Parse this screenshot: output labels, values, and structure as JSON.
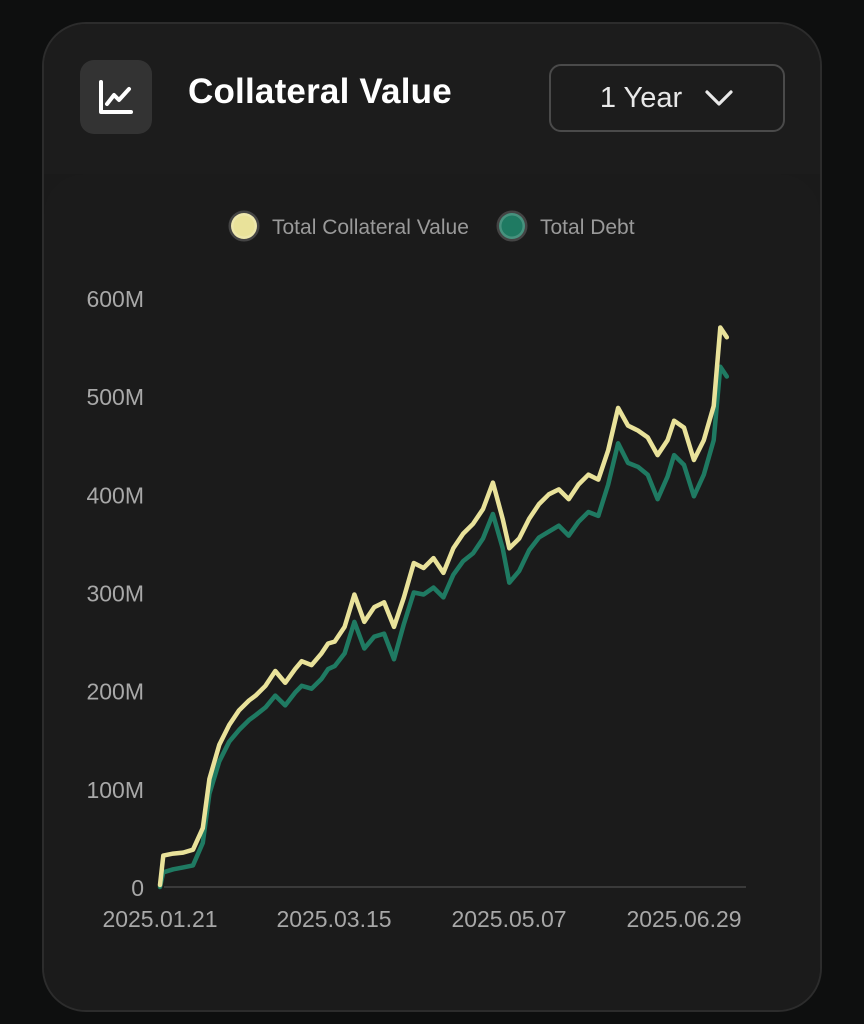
{
  "header": {
    "title": "Collateral Value",
    "icon": "line-chart-icon",
    "range_label": "1 Year"
  },
  "colors": {
    "collateral": "#e9e29a",
    "debt": "#1f7a62",
    "background": "#1b1b1b"
  },
  "chart_data": {
    "type": "line",
    "title": "",
    "xlabel": "",
    "ylabel": "",
    "ylim": [
      0,
      600000000
    ],
    "yticks": [
      {
        "value": 0,
        "label": "0"
      },
      {
        "value": 100000000,
        "label": "100M"
      },
      {
        "value": 200000000,
        "label": "200M"
      },
      {
        "value": 300000000,
        "label": "300M"
      },
      {
        "value": 400000000,
        "label": "400M"
      },
      {
        "value": 500000000,
        "label": "500M"
      },
      {
        "value": 600000000,
        "label": "600M"
      }
    ],
    "xticks": [
      "2025.01.21",
      "2025.03.15",
      "2025.05.07",
      "2025.06.29"
    ],
    "legend": {
      "placement": "top-center"
    },
    "x": [
      "2025.01.21",
      "2025.01.22",
      "2025.01.25",
      "2025.01.28",
      "2025.01.31",
      "2025.02.03",
      "2025.02.05",
      "2025.02.08",
      "2025.02.11",
      "2025.02.14",
      "2025.02.17",
      "2025.02.19",
      "2025.02.22",
      "2025.02.25",
      "2025.02.28",
      "2025.03.03",
      "2025.03.05",
      "2025.03.08",
      "2025.03.11",
      "2025.03.13",
      "2025.03.15",
      "2025.03.18",
      "2025.03.21",
      "2025.03.24",
      "2025.03.27",
      "2025.03.30",
      "2025.04.02",
      "2025.04.05",
      "2025.04.08",
      "2025.04.11",
      "2025.04.14",
      "2025.04.17",
      "2025.04.20",
      "2025.04.23",
      "2025.04.26",
      "2025.04.29",
      "2025.05.02",
      "2025.05.05",
      "2025.05.07",
      "2025.05.10",
      "2025.05.13",
      "2025.05.16",
      "2025.05.19",
      "2025.05.22",
      "2025.05.25",
      "2025.05.28",
      "2025.05.31",
      "2025.06.03",
      "2025.06.06",
      "2025.06.09",
      "2025.06.12",
      "2025.06.15",
      "2025.06.18",
      "2025.06.21",
      "2025.06.24",
      "2025.06.26",
      "2025.06.29",
      "2025.07.02",
      "2025.07.05",
      "2025.07.08",
      "2025.07.10",
      "2025.07.12"
    ],
    "series": [
      {
        "name": "Total Collateral Value",
        "values": [
          2000000,
          32000000,
          34000000,
          35000000,
          38000000,
          60000000,
          110000000,
          145000000,
          165000000,
          180000000,
          190000000,
          195000000,
          205000000,
          220000000,
          208000000,
          222000000,
          230000000,
          226000000,
          238000000,
          248000000,
          250000000,
          265000000,
          298000000,
          270000000,
          285000000,
          290000000,
          265000000,
          295000000,
          330000000,
          325000000,
          335000000,
          320000000,
          345000000,
          360000000,
          370000000,
          385000000,
          412000000,
          375000000,
          345000000,
          355000000,
          375000000,
          390000000,
          400000000,
          405000000,
          395000000,
          410000000,
          420000000,
          415000000,
          445000000,
          488000000,
          470000000,
          465000000,
          458000000,
          440000000,
          455000000,
          475000000,
          468000000,
          435000000,
          455000000,
          490000000,
          570000000,
          560000000
        ]
      },
      {
        "name": "Total Debt",
        "values": [
          0,
          15000000,
          18000000,
          20000000,
          22000000,
          45000000,
          95000000,
          128000000,
          148000000,
          160000000,
          170000000,
          175000000,
          183000000,
          195000000,
          185000000,
          198000000,
          205000000,
          202000000,
          212000000,
          222000000,
          225000000,
          238000000,
          270000000,
          243000000,
          255000000,
          258000000,
          232000000,
          268000000,
          300000000,
          298000000,
          305000000,
          295000000,
          318000000,
          332000000,
          340000000,
          355000000,
          380000000,
          345000000,
          310000000,
          322000000,
          343000000,
          356000000,
          362000000,
          368000000,
          358000000,
          372000000,
          382000000,
          378000000,
          410000000,
          452000000,
          432000000,
          428000000,
          420000000,
          395000000,
          418000000,
          440000000,
          430000000,
          398000000,
          420000000,
          455000000,
          530000000,
          520000000
        ]
      }
    ]
  }
}
